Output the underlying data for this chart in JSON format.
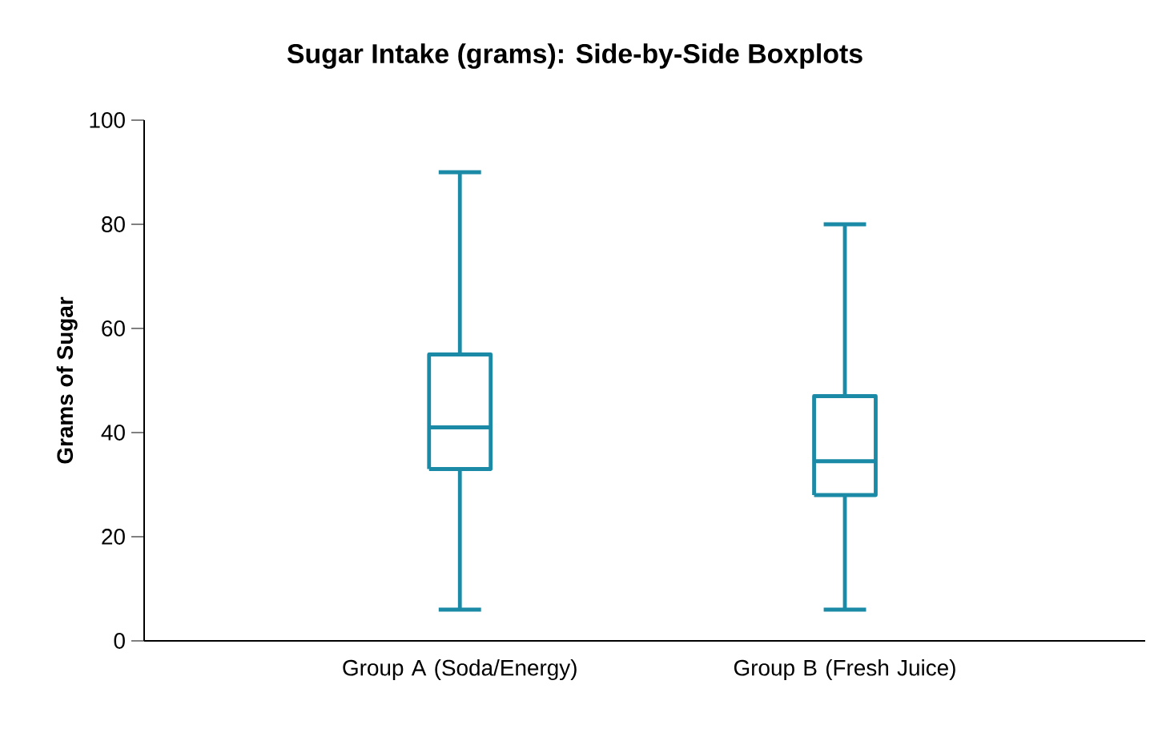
{
  "chart_data": {
    "type": "box",
    "title": "Sugar Intake (grams): Side-by-Side Boxplots",
    "ylabel": "Grams of Sugar",
    "categories": [
      "Group A (Soda/Energy)",
      "Group B (Fresh Juice)"
    ],
    "color": "#1a8aa6",
    "boxes": [
      {
        "low": 6,
        "q1": 33,
        "median": 41,
        "q3": 55,
        "high": 90
      },
      {
        "low": 6,
        "q1": 28,
        "median": 34.5,
        "q3": 47,
        "high": 80
      }
    ],
    "ylim": [
      0,
      100
    ],
    "yticks": [
      0,
      20,
      40,
      60,
      80,
      100
    ]
  }
}
